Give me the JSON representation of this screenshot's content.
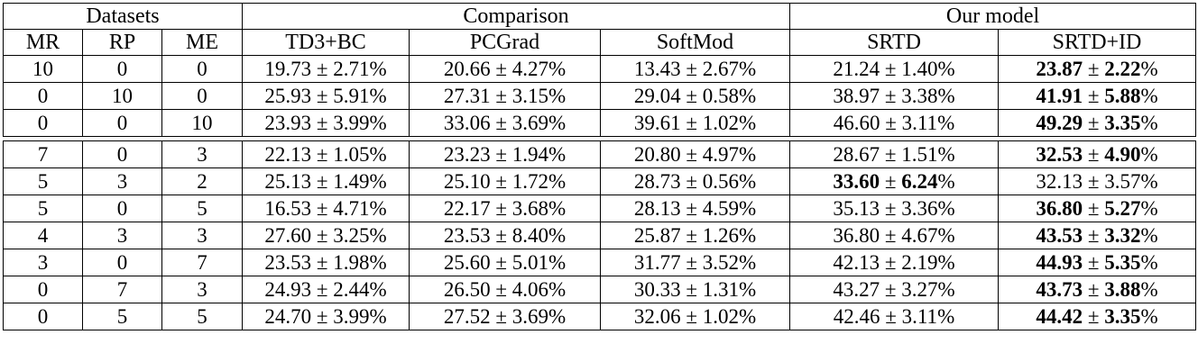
{
  "table": {
    "group_headers": [
      {
        "label": "Datasets",
        "colspan": 3
      },
      {
        "label": "Comparison",
        "colspan": 3
      },
      {
        "label": "Our model",
        "colspan": 2
      }
    ],
    "column_headers": [
      "MR",
      "RP",
      "ME",
      "TD3+BC",
      "PCGrad",
      "SoftMod",
      "SRTD",
      "SRTD+ID"
    ],
    "plus_minus": "±",
    "percent": "%",
    "text_color": "#000000",
    "background_color": "#ffffff",
    "sections": [
      {
        "rows": [
          {
            "datasets": [
              "10",
              "0",
              "0"
            ],
            "values": [
              {
                "mean": "19.73",
                "std": "2.71",
                "bold": false
              },
              {
                "mean": "20.66",
                "std": "4.27",
                "bold": false
              },
              {
                "mean": "13.43",
                "std": "2.67",
                "bold": false
              },
              {
                "mean": "21.24",
                "std": "1.40",
                "bold": false
              },
              {
                "mean": "23.87",
                "std": "2.22",
                "bold": true
              }
            ]
          },
          {
            "datasets": [
              "0",
              "10",
              "0"
            ],
            "values": [
              {
                "mean": "25.93",
                "std": "5.91",
                "bold": false
              },
              {
                "mean": "27.31",
                "std": "3.15",
                "bold": false
              },
              {
                "mean": "29.04",
                "std": "0.58",
                "bold": false
              },
              {
                "mean": "38.97",
                "std": "3.38",
                "bold": false
              },
              {
                "mean": "41.91",
                "std": "5.88",
                "bold": true
              }
            ]
          },
          {
            "datasets": [
              "0",
              "0",
              "10"
            ],
            "values": [
              {
                "mean": "23.93",
                "std": "3.99",
                "bold": false
              },
              {
                "mean": "33.06",
                "std": "3.69",
                "bold": false
              },
              {
                "mean": "39.61",
                "std": "1.02",
                "bold": false
              },
              {
                "mean": "46.60",
                "std": "3.11",
                "bold": false
              },
              {
                "mean": "49.29",
                "std": "3.35",
                "bold": true
              }
            ]
          }
        ]
      },
      {
        "rows": [
          {
            "datasets": [
              "7",
              "0",
              "3"
            ],
            "values": [
              {
                "mean": "22.13",
                "std": "1.05",
                "bold": false
              },
              {
                "mean": "23.23",
                "std": "1.94",
                "bold": false
              },
              {
                "mean": "20.80",
                "std": "4.97",
                "bold": false
              },
              {
                "mean": "28.67",
                "std": "1.51",
                "bold": false
              },
              {
                "mean": "32.53",
                "std": "4.90",
                "bold": true
              }
            ]
          },
          {
            "datasets": [
              "5",
              "3",
              "2"
            ],
            "values": [
              {
                "mean": "25.13",
                "std": "1.49",
                "bold": false
              },
              {
                "mean": "25.10",
                "std": "1.72",
                "bold": false
              },
              {
                "mean": "28.73",
                "std": "0.56",
                "bold": false
              },
              {
                "mean": "33.60",
                "std": "6.24",
                "bold": true
              },
              {
                "mean": "32.13",
                "std": "3.57",
                "bold": false
              }
            ]
          },
          {
            "datasets": [
              "5",
              "0",
              "5"
            ],
            "values": [
              {
                "mean": "16.53",
                "std": "4.71",
                "bold": false
              },
              {
                "mean": "22.17",
                "std": "3.68",
                "bold": false
              },
              {
                "mean": "28.13",
                "std": "4.59",
                "bold": false
              },
              {
                "mean": "35.13",
                "std": "3.36",
                "bold": false
              },
              {
                "mean": "36.80",
                "std": "5.27",
                "bold": true
              }
            ]
          },
          {
            "datasets": [
              "4",
              "3",
              "3"
            ],
            "values": [
              {
                "mean": "27.60",
                "std": "3.25",
                "bold": false
              },
              {
                "mean": "23.53",
                "std": "8.40",
                "bold": false
              },
              {
                "mean": "25.87",
                "std": "1.26",
                "bold": false
              },
              {
                "mean": "36.80",
                "std": "4.67",
                "bold": false
              },
              {
                "mean": "43.53",
                "std": "3.32",
                "bold": true
              }
            ]
          },
          {
            "datasets": [
              "3",
              "0",
              "7"
            ],
            "values": [
              {
                "mean": "23.53",
                "std": "1.98",
                "bold": false
              },
              {
                "mean": "25.60",
                "std": "5.01",
                "bold": false
              },
              {
                "mean": "31.77",
                "std": "3.52",
                "bold": false
              },
              {
                "mean": "42.13",
                "std": "2.19",
                "bold": false
              },
              {
                "mean": "44.93",
                "std": "5.35",
                "bold": true
              }
            ]
          },
          {
            "datasets": [
              "0",
              "7",
              "3"
            ],
            "values": [
              {
                "mean": "24.93",
                "std": "2.44",
                "bold": false
              },
              {
                "mean": "26.50",
                "std": "4.06",
                "bold": false
              },
              {
                "mean": "30.33",
                "std": "1.31",
                "bold": false
              },
              {
                "mean": "43.27",
                "std": "3.27",
                "bold": false
              },
              {
                "mean": "43.73",
                "std": "3.88",
                "bold": true
              }
            ]
          },
          {
            "datasets": [
              "0",
              "5",
              "5"
            ],
            "values": [
              {
                "mean": "24.70",
                "std": "3.99",
                "bold": false
              },
              {
                "mean": "27.52",
                "std": "3.69",
                "bold": false
              },
              {
                "mean": "32.06",
                "std": "1.02",
                "bold": false
              },
              {
                "mean": "42.46",
                "std": "3.11",
                "bold": false
              },
              {
                "mean": "44.42",
                "std": "3.35",
                "bold": true
              }
            ]
          }
        ]
      }
    ]
  }
}
